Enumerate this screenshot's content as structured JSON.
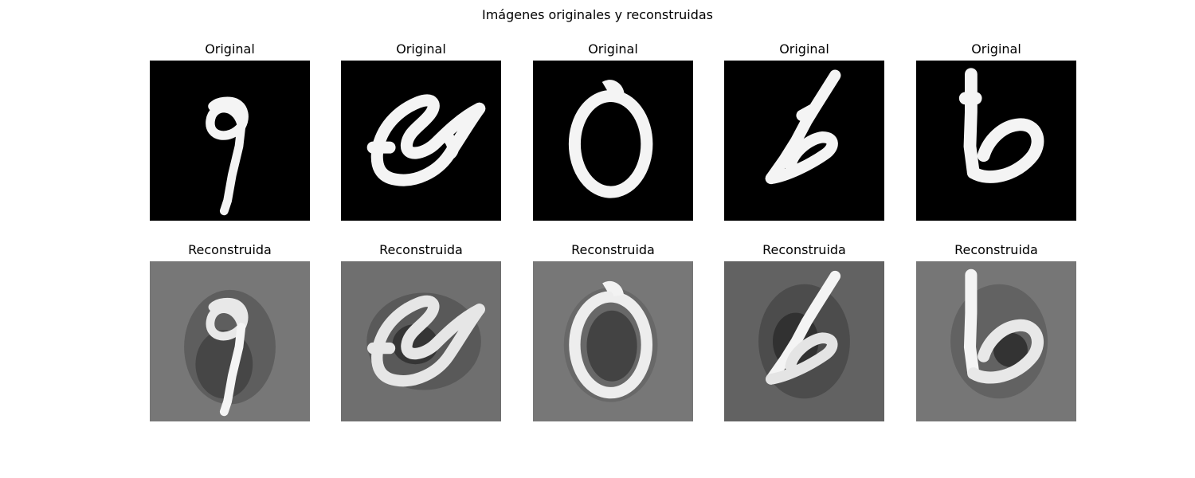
{
  "figure": {
    "title": "Imágenes originales y reconstruidas"
  },
  "rows": [
    {
      "kind": "original",
      "panels": [
        {
          "title": "Original",
          "digit": "9"
        },
        {
          "title": "Original",
          "digit": "8"
        },
        {
          "title": "Original",
          "digit": "0"
        },
        {
          "title": "Original",
          "digit": "6"
        },
        {
          "title": "Original",
          "digit": "6"
        }
      ]
    },
    {
      "kind": "reconstruida",
      "panels": [
        {
          "title": "Reconstruida",
          "digit": "9"
        },
        {
          "title": "Reconstruida",
          "digit": "8"
        },
        {
          "title": "Reconstruida",
          "digit": "0"
        },
        {
          "title": "Reconstruida",
          "digit": "6"
        },
        {
          "title": "Reconstruida",
          "digit": "6"
        }
      ]
    }
  ],
  "colors": {
    "original_background": "#000000",
    "reconstruida_background": "#7a7a7a",
    "reconstruida_background_dark": "#5f5f5f",
    "stroke": "#f2f2f2"
  }
}
